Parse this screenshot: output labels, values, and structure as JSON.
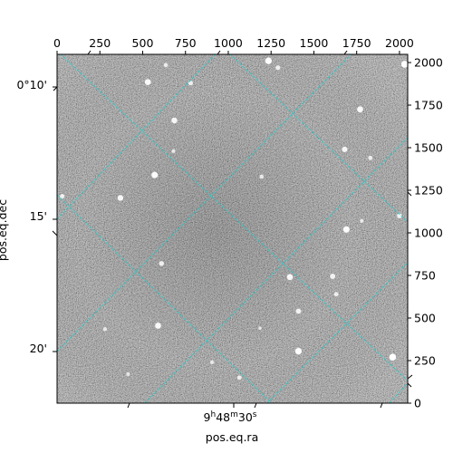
{
  "chart_data": {
    "type": "heatmap",
    "title": "",
    "image": {
      "colormap": "grayscale",
      "description_free": true,
      "stars": [
        {
          "x": 2030,
          "y": 1990,
          "level": 1.0
        },
        {
          "x": 1235,
          "y": 2010,
          "level": 0.95
        },
        {
          "x": 1290,
          "y": 1970,
          "level": 0.6
        },
        {
          "x": 635,
          "y": 1985,
          "level": 0.5
        },
        {
          "x": 530,
          "y": 1885,
          "level": 0.85
        },
        {
          "x": 780,
          "y": 1880,
          "level": 0.6
        },
        {
          "x": 1770,
          "y": 1725,
          "level": 0.85
        },
        {
          "x": 685,
          "y": 1660,
          "level": 0.8
        },
        {
          "x": 1680,
          "y": 1490,
          "level": 0.75
        },
        {
          "x": 1830,
          "y": 1440,
          "level": 0.55
        },
        {
          "x": 680,
          "y": 1480,
          "level": 0.45
        },
        {
          "x": 570,
          "y": 1340,
          "level": 0.9
        },
        {
          "x": 1195,
          "y": 1330,
          "level": 0.5
        },
        {
          "x": 370,
          "y": 1205,
          "level": 0.8
        },
        {
          "x": 30,
          "y": 1215,
          "level": 0.6
        },
        {
          "x": 2000,
          "y": 1100,
          "level": 0.65
        },
        {
          "x": 1780,
          "y": 1070,
          "level": 0.45
        },
        {
          "x": 1690,
          "y": 1020,
          "level": 0.9
        },
        {
          "x": 610,
          "y": 820,
          "level": 0.65
        },
        {
          "x": 1360,
          "y": 740,
          "level": 0.85
        },
        {
          "x": 1610,
          "y": 745,
          "level": 0.7
        },
        {
          "x": 1630,
          "y": 640,
          "level": 0.55
        },
        {
          "x": 1410,
          "y": 540,
          "level": 0.7
        },
        {
          "x": 590,
          "y": 455,
          "level": 0.85
        },
        {
          "x": 280,
          "y": 435,
          "level": 0.45
        },
        {
          "x": 1185,
          "y": 440,
          "level": 0.35
        },
        {
          "x": 1410,
          "y": 305,
          "level": 0.95
        },
        {
          "x": 1960,
          "y": 270,
          "level": 1.0
        },
        {
          "x": 905,
          "y": 240,
          "level": 0.45
        },
        {
          "x": 415,
          "y": 170,
          "level": 0.4
        },
        {
          "x": 1065,
          "y": 150,
          "level": 0.55
        }
      ]
    },
    "x_pixel_axis": {
      "lim": [
        0,
        2048
      ],
      "ticks": [
        0,
        250,
        500,
        750,
        1000,
        1250,
        1500,
        1750,
        2000
      ],
      "tick_labels": [
        "0",
        "250",
        "500",
        "750",
        "1000",
        "1250",
        "1500",
        "1750",
        "2000"
      ]
    },
    "y_pixel_axis": {
      "lim": [
        0,
        2048
      ],
      "ticks": [
        0,
        250,
        500,
        750,
        1000,
        1250,
        1500,
        1750,
        2000
      ],
      "tick_labels": [
        "0",
        "250",
        "500",
        "750",
        "1000",
        "1250",
        "1500",
        "1750",
        "2000"
      ]
    },
    "ra_axis": {
      "label": "pos.eq.ra",
      "tick_label_major": "9",
      "tick_label_h": "h",
      "tick_label_mid": "48",
      "tick_label_m": "m",
      "tick_label_sec": "30",
      "tick_label_s": "s"
    },
    "dec_axis": {
      "label": "pos.eq.dec",
      "tick_labels": [
        "0°10'",
        "15'",
        "20'"
      ]
    },
    "grid": {
      "on": true,
      "color": "#22cccc",
      "style": "dashed"
    }
  }
}
